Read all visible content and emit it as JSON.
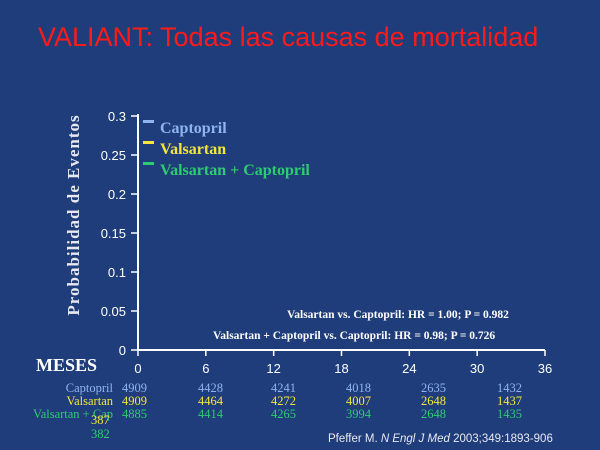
{
  "slide_title": "VALIANT: Todas las causas de mortalidad",
  "chart_data": {
    "type": "line",
    "title": "VALIANT: Todas las causas de mortalidad",
    "xlabel": "MESES",
    "ylabel": "Probabilidad de Eventos",
    "x_ticks": [
      0,
      6,
      12,
      18,
      24,
      30,
      36
    ],
    "y_ticks": [
      "0",
      "0.05",
      "0.1",
      "0.15",
      "0.2",
      "0.25",
      "0.3"
    ],
    "xlim": [
      0,
      36
    ],
    "ylim": [
      0,
      0.3
    ],
    "grid": false,
    "legend_placement": "top-left",
    "series": [
      {
        "name": "Captopril",
        "color": "#8fb4f0"
      },
      {
        "name": "Valsartan",
        "color": "#f5e63c"
      },
      {
        "name": "Valsartan + Captopril",
        "color": "#2ecc71"
      }
    ],
    "annotations": [
      "Valsartan vs. Captopril: HR = 1.00; P = 0.982",
      "Valsartan + Captopril vs. Captopril: HR = 0.98; P = 0.726"
    ],
    "numbers_at_risk": [
      {
        "label": "Captopril",
        "color": "#8fb4f0",
        "values": [
          "4909",
          "4428",
          "4241",
          "4018",
          "2635",
          "1432"
        ]
      },
      {
        "label": "Valsartan",
        "color": "#f5e63c",
        "values": [
          "4909",
          "4464",
          "4272",
          "4007",
          "2648",
          "1437"
        ]
      },
      {
        "label": "Valsartan + Cap",
        "color": "#2ecc71",
        "values": [
          "4885",
          "4414",
          "4265",
          "3994",
          "2648",
          "1435"
        ]
      }
    ],
    "stray_numbers": [
      {
        "text": "387",
        "color": "#f5e63c"
      },
      {
        "text": "382",
        "color": "#2ecc71"
      }
    ]
  },
  "colors": {
    "background": "#1f3d7a",
    "axis": "#ffffff",
    "title": "#ff1a1a"
  },
  "citation": {
    "author": "Pfeffer M.",
    "journal": "N Engl J Med",
    "ref": "2003;349:1893-906"
  }
}
